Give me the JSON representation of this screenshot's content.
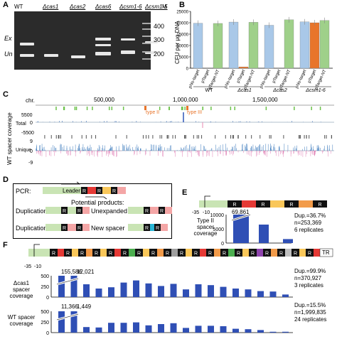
{
  "panels": {
    "A": {
      "letter": "A",
      "lanes": [
        "WT",
        "Δcas1",
        "Δcas2",
        "Δcas6",
        "Δcsm1-6",
        "Δcsm1-5",
        "M"
      ],
      "markers": [
        "400",
        "300",
        "200"
      ],
      "band_labels": [
        "Ex",
        "Un"
      ]
    },
    "B": {
      "letter": "B",
      "ylabel": "CFU per μg DNA",
      "groups": [
        "WT",
        "Δcas1",
        "Δcas2",
        "Δcsm1-6"
      ],
      "bar_labels": [
        "pNo-target",
        "pTarget",
        "pTarget-NT"
      ]
    },
    "C": {
      "letter": "C",
      "chr_label": "chr.",
      "ticks": [
        "500,000",
        "1,000,000",
        "1,500,000"
      ],
      "type2": "type II",
      "type3": "type III",
      "total_label": "Total",
      "unique_label": "Unique",
      "side_label": "WT spacer coverage",
      "y_total": [
        "5500",
        "0",
        "-5500"
      ],
      "y_unique": [
        "9",
        "0",
        "-9"
      ]
    },
    "D": {
      "letter": "D",
      "pcr": "PCR:",
      "leader": "Leader",
      "r": "R",
      "potential": "Potential products:",
      "dup1": "Duplication",
      "dup2": "Duplication",
      "unexpanded": "Unexpanded",
      "new_spacer": "New spacer"
    },
    "E": {
      "letter": "E",
      "pos": [
        "-35",
        "-10"
      ],
      "ylabel": "Type II spacer coverage",
      "peak": "69,861",
      "stats": [
        "Dup.=36.7%",
        "n=253,369",
        "6 replicates"
      ]
    },
    "F": {
      "letter": "F",
      "pos": [
        "-35",
        "-10"
      ],
      "tr": "TR",
      "top_label": "Δcas1 spacer coverage",
      "top_peaks": [
        "155,586",
        "12,021"
      ],
      "top_stats": [
        "Dup.=99.9%",
        "n=370,927",
        "3 replicates"
      ],
      "bottom_label": "WT spacer coverage",
      "bottom_peaks": [
        "11,366",
        "1,449"
      ],
      "bottom_stats": [
        "Dup.=15.5%",
        "n=1,999,835",
        "24 replicates"
      ]
    }
  },
  "chart_data": [
    {
      "type": "bar",
      "panel": "B",
      "ylim": [
        0,
        25000
      ],
      "ticks": [
        0,
        5000,
        10000,
        15000,
        20000,
        25000
      ],
      "categories": [
        "WT",
        "Δcas1",
        "Δcas2",
        "Δcsm1-6"
      ],
      "series": [
        {
          "name": "pNo-target",
          "color": "#a9c8e8",
          "values": [
            19800,
            20300,
            18900,
            20400
          ]
        },
        {
          "name": "pTarget",
          "color": "#e8752b",
          "values": [
            0,
            600,
            0,
            20000
          ]
        },
        {
          "name": "pTarget-NT",
          "color": "#9fd08a",
          "values": [
            19700,
            20200,
            21300,
            21000
          ]
        }
      ]
    },
    {
      "type": "bar",
      "panel": "E",
      "ylim": [
        0,
        10000
      ],
      "ticks": [
        0,
        5000,
        10000
      ],
      "values": [
        10000,
        6500,
        1400
      ]
    },
    {
      "type": "bar",
      "panel": "F-top",
      "ylim": [
        0,
        500
      ],
      "ticks": [
        0,
        250,
        500
      ],
      "values": [
        500,
        500,
        300,
        200,
        230,
        340,
        390,
        320,
        260,
        310,
        180,
        300,
        280,
        240,
        200,
        180,
        140,
        130,
        60
      ]
    },
    {
      "type": "bar",
      "panel": "F-bottom",
      "ylim": [
        0,
        500
      ],
      "ticks": [
        0,
        250,
        500
      ],
      "values": [
        500,
        500,
        130,
        120,
        230,
        230,
        240,
        170,
        200,
        220,
        110,
        160,
        160,
        150,
        90,
        80,
        60,
        20,
        20
      ]
    }
  ]
}
